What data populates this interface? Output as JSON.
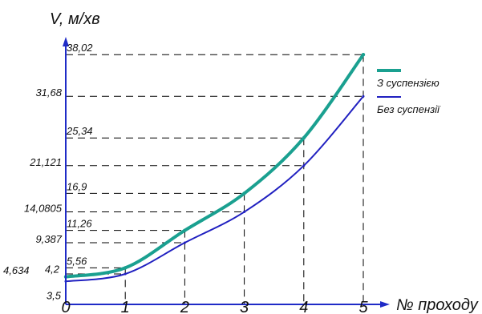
{
  "chart_data": {
    "type": "line",
    "xlabel": "№ проходу",
    "ylabel": "V, м/хв",
    "x_ticks": [
      "0",
      "1",
      "2",
      "3",
      "4",
      "5"
    ],
    "x": [
      0,
      1,
      2,
      3,
      4,
      5
    ],
    "series": [
      {
        "name": "З суспензією",
        "color": "#1aa090",
        "values": [
          4.2,
          5.56,
          11.26,
          16.9,
          25.34,
          38.02
        ],
        "labels": [
          "4,2",
          "5,56",
          "11,26",
          "16,9",
          "25,34",
          "38,02"
        ]
      },
      {
        "name": "Без суспензії",
        "color": "#2020c0",
        "values": [
          3.5,
          4.634,
          9.387,
          14.0805,
          21.121,
          31.68
        ],
        "labels": [
          "3,5",
          "4,634",
          "9,387",
          "14,0805",
          "21,121",
          "31,68"
        ]
      }
    ],
    "legend_position": "right"
  }
}
